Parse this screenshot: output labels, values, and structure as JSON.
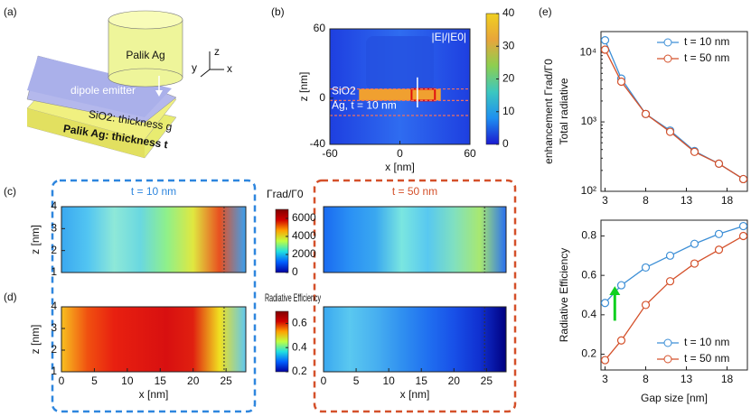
{
  "panel_labels": [
    "(a)",
    "(b)",
    "(c)",
    "(d)",
    "(e)"
  ],
  "schematic": {
    "labels": [
      "Palik Ag",
      "z",
      "y",
      "x",
      "dipole emitter",
      "SiO2: thickness g",
      "Palik Ag:  thickness t"
    ]
  },
  "chart_data": [
    {
      "type": "heatmap",
      "xlabel": "x [nm]",
      "ylabel": "z [nm]",
      "xlim": [
        -60,
        60
      ],
      "xticks": [
        -60,
        0,
        60
      ],
      "ylim": [
        -40,
        60
      ],
      "yticks": [
        -40,
        0,
        60
      ],
      "annotations": [
        "SiO2",
        "Ag, t = 10 nm"
      ],
      "gradient": [
        "#1e3fe0",
        "#2f6cf0",
        "#1e3fe0"
      ],
      "colorbar": {
        "label": "|E|/|E0|",
        "lim": [
          0,
          40
        ],
        "ticks": [
          0,
          10,
          20,
          30,
          40
        ],
        "colors": [
          "#1a1ad0",
          "#1f8ff0",
          "#3cc7c0",
          "#8ccf50",
          "#e8a53a",
          "#f0d020"
        ]
      }
    },
    {
      "type": "heatmap",
      "title": "t = 10 nm",
      "title_color": "#2e86de",
      "ylabel": "z [nm]",
      "xlim": [
        0,
        28
      ],
      "ylim": [
        1,
        4
      ],
      "yticks": [
        1,
        2,
        3,
        4
      ],
      "dashed_line_x": 24.7,
      "gradient": [
        "#3aa8f0",
        "#52c5f2",
        "#8ee8d8",
        "#6ad8e0",
        "#8ff08a",
        "#e0e840",
        "#e85020",
        "#3aa0f0"
      ],
      "colorbar": {
        "label": "Γrad/Γ0",
        "lim": [
          0,
          7000
        ],
        "ticks": [
          0,
          2000,
          4000,
          6000
        ],
        "colors": [
          "#0000a0",
          "#0060ff",
          "#20e0e0",
          "#c0ff40",
          "#ffa000",
          "#d00000",
          "#800000"
        ]
      }
    },
    {
      "type": "heatmap",
      "title": "t = 50 nm",
      "title_color": "#d4502a",
      "xlim": [
        0,
        28
      ],
      "ylim": [
        1,
        4
      ],
      "dashed_line_x": 24.7,
      "gradient": [
        "#1a6af0",
        "#2a90f4",
        "#3aa8f0",
        "#7ae6e0",
        "#58c8f0",
        "#80e0c0",
        "#a8e870",
        "#2a70f0"
      ]
    },
    {
      "type": "heatmap",
      "xlabel": "x [nm]",
      "xticks": [
        0,
        5,
        10,
        15,
        20,
        25
      ],
      "ylabel": "z [nm]",
      "xlim": [
        0,
        28
      ],
      "ylim": [
        1,
        4
      ],
      "yticks": [
        1,
        2,
        3,
        4
      ],
      "dashed_line_x": 24.7,
      "gradient": [
        "#f8c020",
        "#f05010",
        "#e82010",
        "#e01810",
        "#d81010",
        "#e02010",
        "#f0e020",
        "#60c8f0"
      ],
      "colorbar": {
        "label": "Radiative Efficiency",
        "lim": [
          0.2,
          0.7
        ],
        "ticks": [
          0.2,
          0.4,
          0.6
        ],
        "colors": [
          "#0000a0",
          "#0060ff",
          "#20e0e0",
          "#c0ff40",
          "#ffa000",
          "#d00000",
          "#800000"
        ]
      }
    },
    {
      "type": "heatmap",
      "xlabel": "x [nm]",
      "xticks": [
        0,
        5,
        10,
        15,
        20,
        25
      ],
      "xlim": [
        0,
        28
      ],
      "ylim": [
        1,
        4
      ],
      "dashed_line_x": 24.7,
      "gradient": [
        "#3aa8f0",
        "#5ac8f0",
        "#48b0f0",
        "#3090f0",
        "#2070f0",
        "#1850e8",
        "#1030d0",
        "#000080"
      ]
    },
    {
      "type": "line",
      "ylabel": [
        "Total radiative",
        "enhancement  Γrad/Γ0"
      ],
      "log": true,
      "x": [
        3,
        5,
        8,
        11,
        14,
        17,
        20
      ],
      "xlim": [
        2.5,
        20.5
      ],
      "xticks": [
        3,
        8,
        13,
        18
      ],
      "ylim": [
        100,
        20000
      ],
      "yticks": [
        {
          "value": 100,
          "label": "10²"
        },
        {
          "value": 1000,
          "label": "10³"
        },
        {
          "value": 10000,
          "label": "10⁴"
        }
      ],
      "legend": "upper right",
      "series": [
        {
          "name": "t = 10 nm",
          "color": "#3d8fd6",
          "values": [
            15000,
            4200,
            1300,
            750,
            380,
            250,
            150
          ]
        },
        {
          "name": "t = 50 nm",
          "color": "#d4502a",
          "values": [
            11000,
            3800,
            1300,
            720,
            370,
            250,
            150
          ]
        }
      ]
    },
    {
      "type": "line",
      "ylabel": [
        "Radiative Efficiency"
      ],
      "xlabel": "Gap size [nm]",
      "x": [
        3,
        5,
        8,
        11,
        14,
        17,
        20
      ],
      "xlim": [
        2.5,
        20.5
      ],
      "xticks": [
        3,
        8,
        13,
        18
      ],
      "ylim": [
        0.12,
        0.88
      ],
      "yticks": [
        0.2,
        0.4,
        0.6,
        0.8
      ],
      "legend": "lower right",
      "series": [
        {
          "name": "t = 10 nm",
          "color": "#3d8fd6",
          "values": [
            0.46,
            0.55,
            0.64,
            0.7,
            0.76,
            0.81,
            0.85
          ]
        },
        {
          "name": "t = 50 nm",
          "color": "#d4502a",
          "values": [
            0.17,
            0.27,
            0.45,
            0.57,
            0.66,
            0.73,
            0.8
          ]
        }
      ]
    }
  ]
}
